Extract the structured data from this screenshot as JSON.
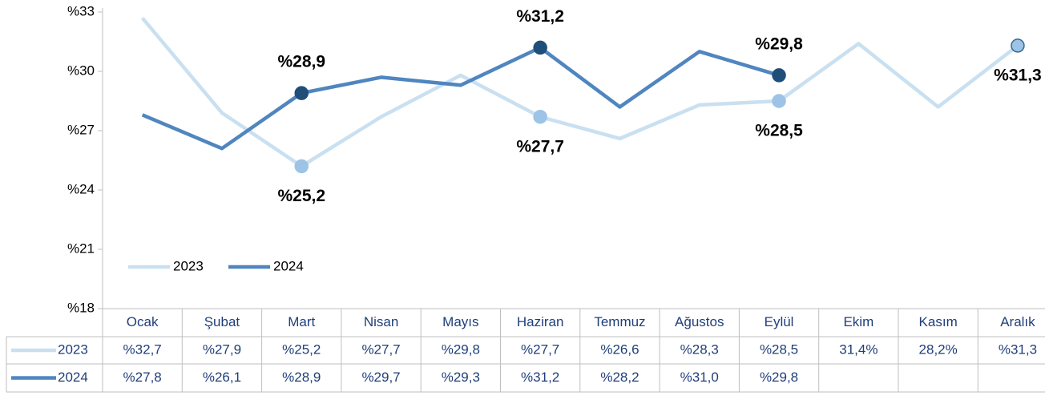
{
  "chart_data": {
    "type": "line",
    "categories": [
      "Ocak",
      "Şubat",
      "Mart",
      "Nisan",
      "Mayıs",
      "Haziran",
      "Temmuz",
      "Ağustos",
      "Eylül",
      "Ekim",
      "Kasım",
      "Aralık"
    ],
    "series": [
      {
        "name": "2023",
        "color": "#c9e0f1",
        "marker_color": "#9dc3e6",
        "label_color": "#a8cce8",
        "values": [
          32.7,
          27.9,
          25.2,
          27.7,
          29.8,
          27.7,
          26.6,
          28.3,
          28.5,
          31.4,
          28.2,
          31.3
        ],
        "value_labels": [
          "%32,7",
          "%27,9",
          "%25,2",
          "%27,7",
          "%29,8",
          "%27,7",
          "%26,6",
          "%28,3",
          "%28,5",
          "31,4%",
          "28,2%",
          "%31,3"
        ],
        "labeled_points": [
          2,
          5,
          8,
          11
        ],
        "label_position": "below"
      },
      {
        "name": "2024",
        "color": "#4f86bf",
        "marker_color": "#1f4e79",
        "label_color": "#2f6b8c",
        "values": [
          27.8,
          26.1,
          28.9,
          29.7,
          29.3,
          31.2,
          28.2,
          31.0,
          29.8,
          null,
          null,
          null
        ],
        "value_labels": [
          "%27,8",
          "%26,1",
          "%28,9",
          "%29,7",
          "%29,3",
          "%31,2",
          "%28,2",
          "%31,0",
          "%29,8",
          null,
          null,
          null
        ],
        "labeled_points": [
          2,
          5,
          8
        ],
        "label_position": "above"
      }
    ],
    "ylim": [
      18,
      33
    ],
    "yticks": [
      {
        "value": 18,
        "label": "%18"
      },
      {
        "value": 21,
        "label": "%21"
      },
      {
        "value": 24,
        "label": "%24"
      },
      {
        "value": 27,
        "label": "%27"
      },
      {
        "value": 30,
        "label": "%30"
      },
      {
        "value": 33,
        "label": "%33"
      }
    ],
    "legend": "bottom-left",
    "data_table": true
  }
}
